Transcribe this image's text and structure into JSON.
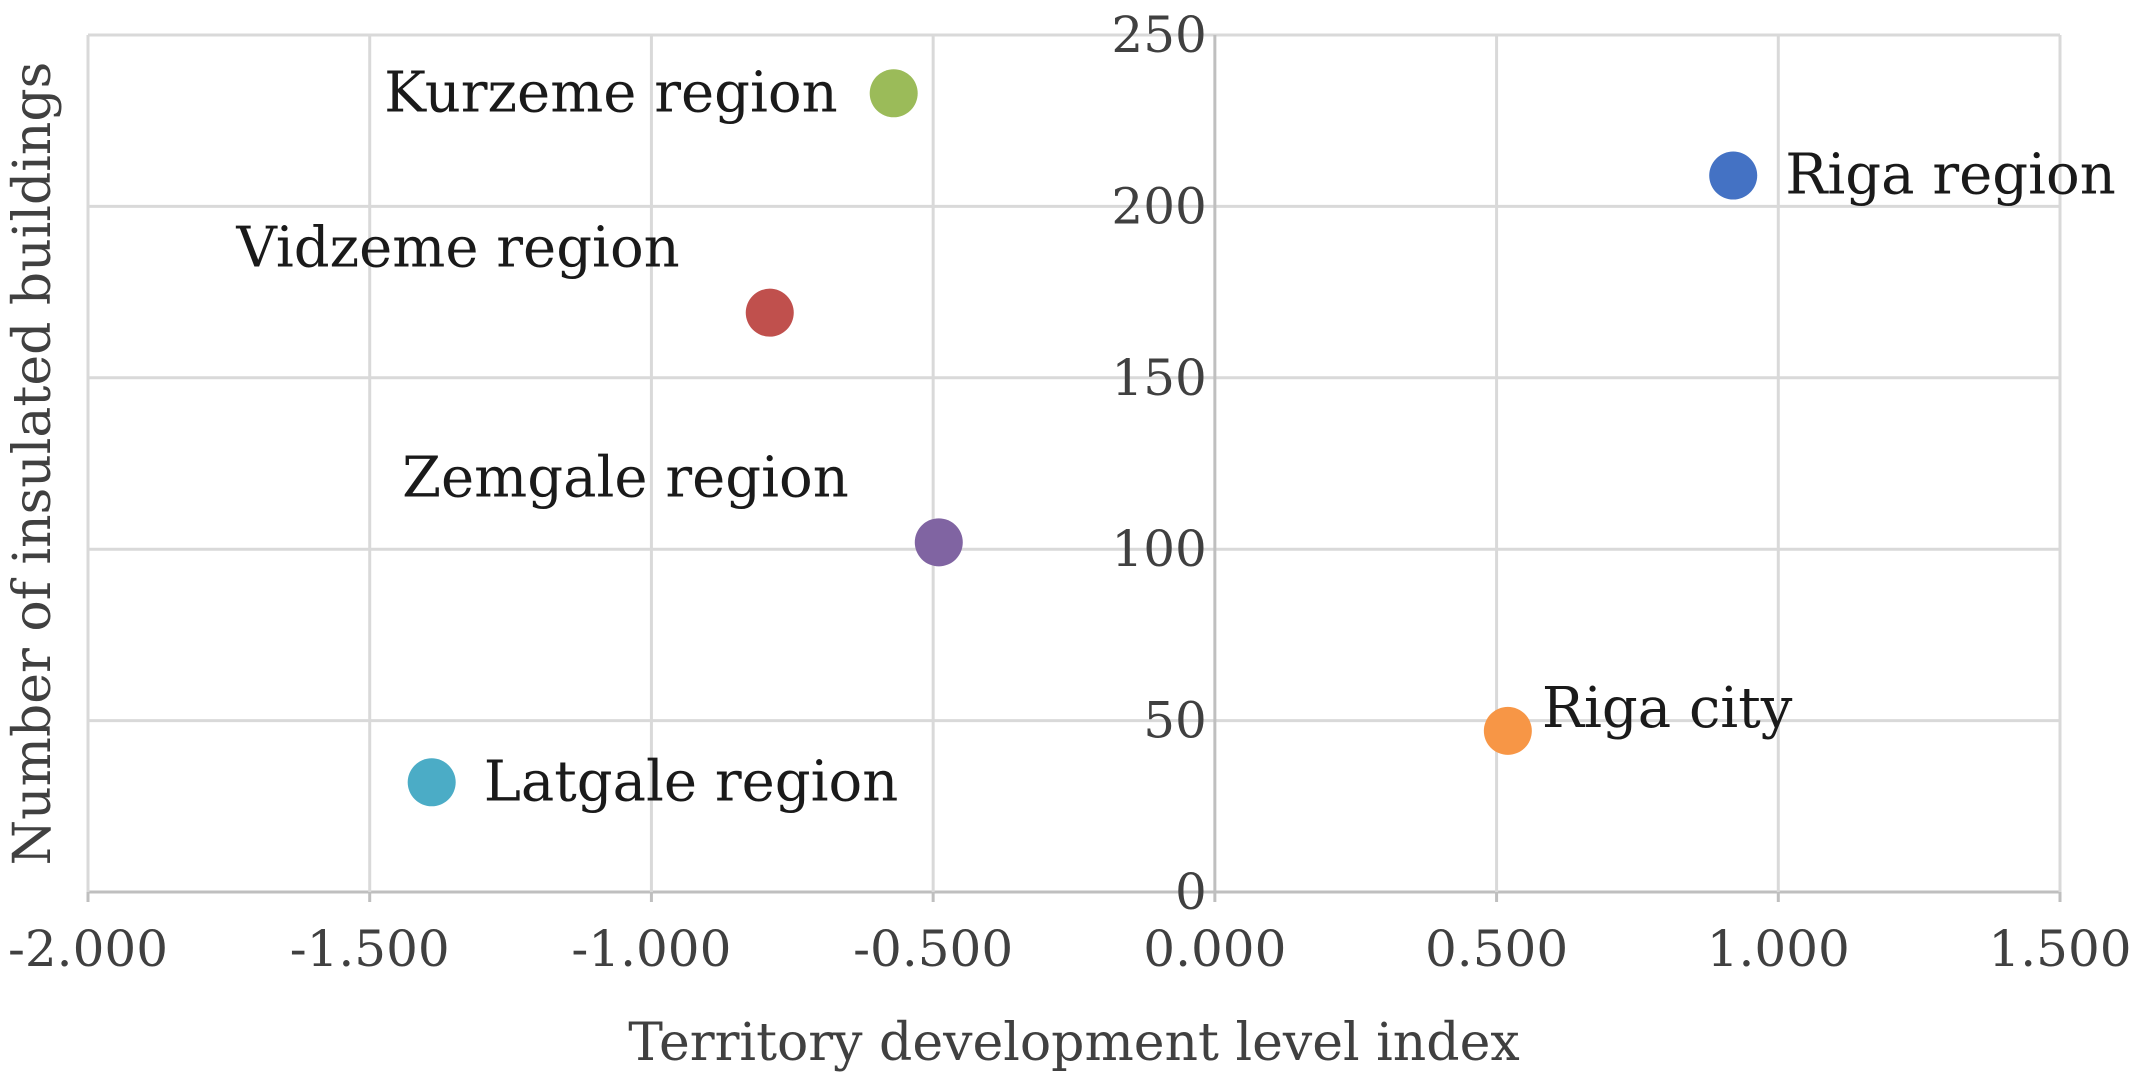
{
  "chart_data": {
    "type": "scatter",
    "title": "",
    "xlabel": "Territory development level index",
    "ylabel": "Number of insulated buildings",
    "xlim": [
      -2.0,
      1.5
    ],
    "ylim": [
      0,
      250
    ],
    "x_ticks": [
      -2.0,
      -1.5,
      -1.0,
      -0.5,
      0.0,
      0.5,
      1.0,
      1.5
    ],
    "x_tick_labels": [
      "-2.000",
      "-1.500",
      "-1.000",
      "-0.500",
      "0.000",
      "0.500",
      "1.000",
      "1.500"
    ],
    "y_ticks": [
      0,
      50,
      100,
      150,
      200,
      250
    ],
    "y_tick_labels": [
      "0",
      "50",
      "100",
      "150",
      "200",
      "250"
    ],
    "grid": true,
    "legend": "none",
    "points": [
      {
        "label": "Riga region",
        "x": 0.92,
        "y": 209,
        "color": "#4472c4",
        "label_pos": "right"
      },
      {
        "label": "Riga city",
        "x": 0.52,
        "y": 47,
        "color": "#f79646",
        "label_pos": "upper-right"
      },
      {
        "label": "Kurzeme region",
        "x": -0.57,
        "y": 233,
        "color": "#9bbb59",
        "label_pos": "left"
      },
      {
        "label": "Vidzeme region",
        "x": -0.79,
        "y": 169,
        "color": "#c0504d",
        "label_pos": "upper-left"
      },
      {
        "label": "Zemgale region",
        "x": -0.49,
        "y": 102,
        "color": "#8064a2",
        "label_pos": "upper-left"
      },
      {
        "label": "Latgale region",
        "x": -1.39,
        "y": 32,
        "color": "#4bacc6",
        "label_pos": "right"
      }
    ]
  }
}
